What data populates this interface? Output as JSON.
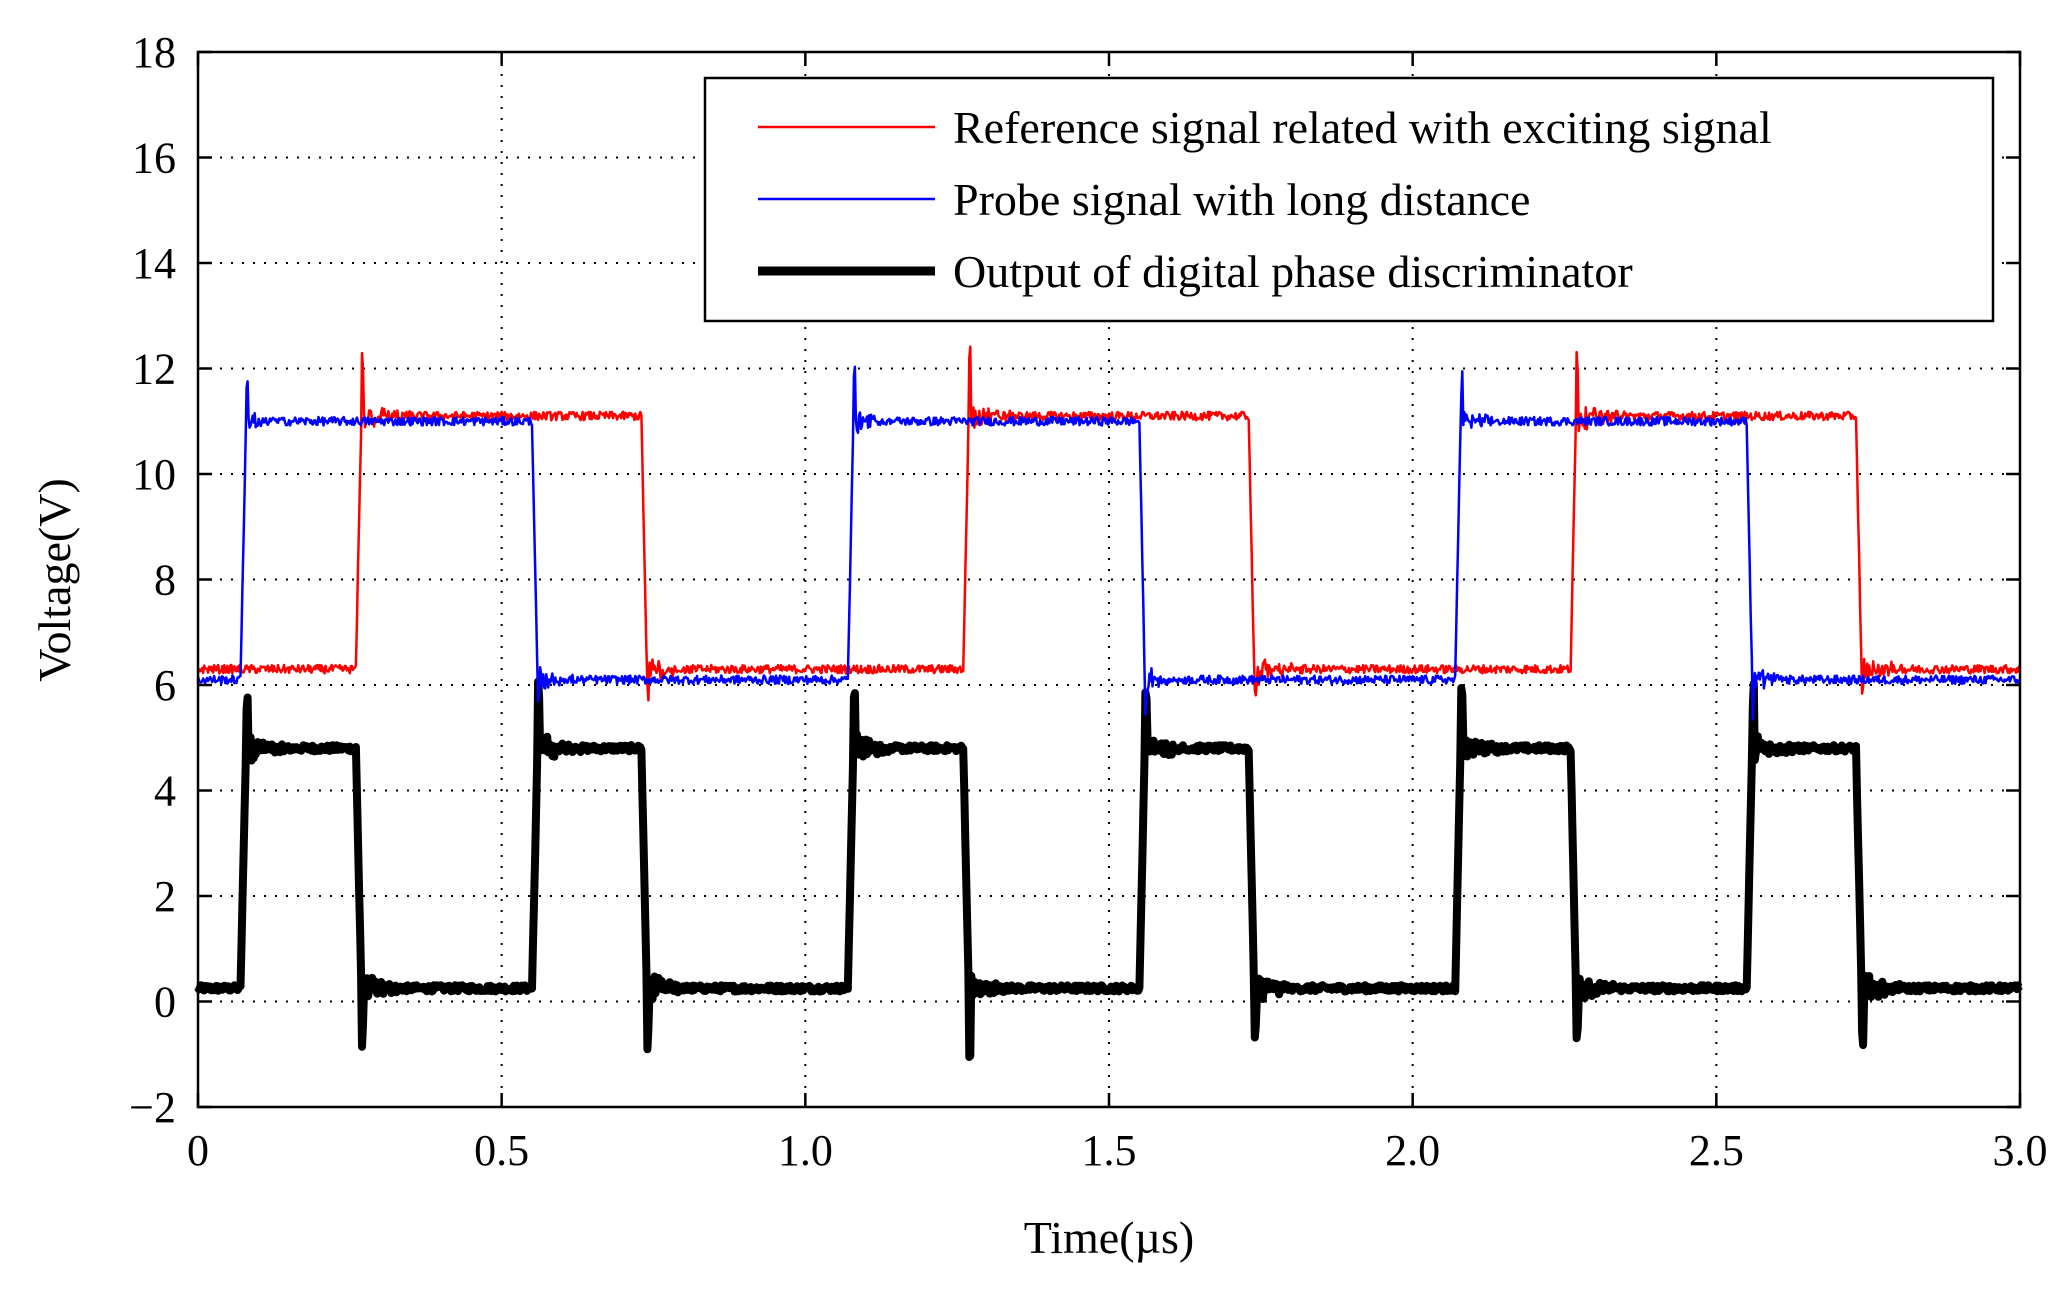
{
  "chart_data": {
    "type": "line",
    "title": "",
    "xlabel": "Time(µs)",
    "ylabel": "Voltage(V)",
    "xlim": [
      0,
      3.0
    ],
    "ylim": [
      -2,
      18
    ],
    "x_ticks": [
      0,
      0.5,
      1.0,
      1.5,
      2.0,
      2.5,
      3.0
    ],
    "x_tick_labels": [
      "0",
      "0.5",
      "1.0",
      "1.5",
      "2.0",
      "2.5",
      "3.0"
    ],
    "y_ticks": [
      -2,
      0,
      2,
      4,
      6,
      8,
      10,
      12,
      14,
      16,
      18
    ],
    "y_tick_labels": [
      "−2",
      "0",
      "2",
      "4",
      "6",
      "8",
      "10",
      "12",
      "14",
      "16",
      "18"
    ],
    "grid": true,
    "legend_position": "top-right",
    "series": [
      {
        "name": "Reference signal related with exciting signal",
        "color": "#ff0000",
        "style": "thin",
        "low": 6.3,
        "high": 11.1,
        "rise_times": [
          0.26,
          1.26,
          2.26
        ],
        "fall_times": [
          0.73,
          1.73,
          2.73
        ]
      },
      {
        "name": "Probe signal with long distance",
        "color": "#0000ff",
        "style": "thin",
        "low": 6.1,
        "high": 11.0,
        "rise_times": [
          0.07,
          1.07,
          2.07
        ],
        "fall_times": [
          0.55,
          1.55,
          2.55
        ]
      },
      {
        "name": "Output of digital phase discriminator",
        "color": "#000000",
        "style": "thick",
        "low": 0.25,
        "high": 4.8,
        "rise_times": [
          0.07,
          0.55,
          1.07,
          1.55,
          2.07,
          2.55
        ],
        "fall_times": [
          0.26,
          0.73,
          1.26,
          1.73,
          2.26,
          2.73
        ]
      }
    ]
  }
}
